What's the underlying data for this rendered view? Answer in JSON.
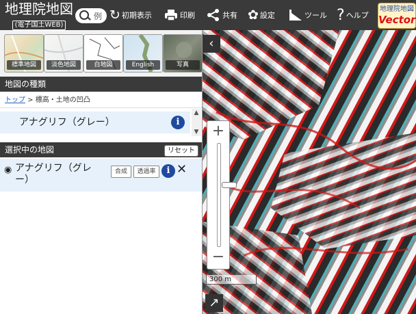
{
  "app": {
    "logo_main": "地理院地図",
    "logo_sub": "(電子国土WEB)",
    "search_placeholder": "例"
  },
  "header": {
    "reset_view": "初期表示",
    "print": "印刷",
    "share": "共有",
    "settings": "設定",
    "tools": "ツール",
    "help": "ヘルプ",
    "vector_top": "地理院地図",
    "vector_bottom": "Vector"
  },
  "basemaps": [
    {
      "label": "標準地図"
    },
    {
      "label": "淡色地図"
    },
    {
      "label": "白地図"
    },
    {
      "label": "English"
    },
    {
      "label": "写真"
    }
  ],
  "map_types": {
    "title": "地図の種類",
    "breadcrumb_link": "トップ",
    "breadcrumb_rest": " > 標高・土地の凹凸",
    "items": [
      {
        "label": "アナグリフ（グレー）"
      }
    ]
  },
  "selected": {
    "title": "選択中の地図",
    "reset_label": "リセット",
    "layer_name": "アナグリフ（グレー）",
    "combine_label": "合成",
    "opacity_label": "透過率"
  },
  "map": {
    "scale_label": "300 m",
    "zoom_level_fraction": 0.4
  },
  "colors": {
    "header_bg": "#3a3a3a",
    "selected_bg": "#e6f1fb",
    "info_blue": "#1f4aa0",
    "anaglyph_red": "#d01818",
    "anaglyph_cyan": "#20c8d8"
  }
}
